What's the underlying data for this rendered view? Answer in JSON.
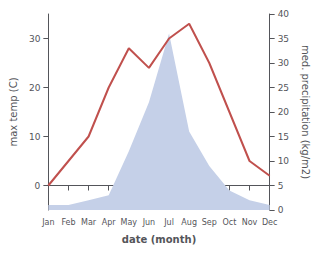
{
  "chart_data": {
    "type": "line",
    "categories": [
      "Jan",
      "Feb",
      "Mar",
      "Apr",
      "May",
      "Jun",
      "Jul",
      "Aug",
      "Sep",
      "Oct",
      "Nov",
      "Dec"
    ],
    "xlabel": "date (month)",
    "ylabel": "max temp (C)",
    "y2label": "med. precipitation (kg/m2)",
    "ylim": [
      -5,
      35
    ],
    "yticks": [
      0,
      10,
      20,
      30
    ],
    "y2lim": [
      0,
      40
    ],
    "y2ticks": [
      0,
      5,
      10,
      15,
      20,
      25,
      30,
      35,
      40
    ],
    "grid": false,
    "series": [
      {
        "type": "area",
        "axis": "y2",
        "color": "#c5d0e8",
        "values": [
          1,
          1,
          2,
          3,
          12,
          22,
          36,
          16,
          9,
          4,
          2,
          1
        ]
      },
      {
        "type": "line",
        "color": "#c0504d",
        "values": [
          0,
          5,
          10,
          20,
          28,
          24,
          30,
          33,
          25,
          15,
          5,
          2
        ]
      }
    ]
  }
}
